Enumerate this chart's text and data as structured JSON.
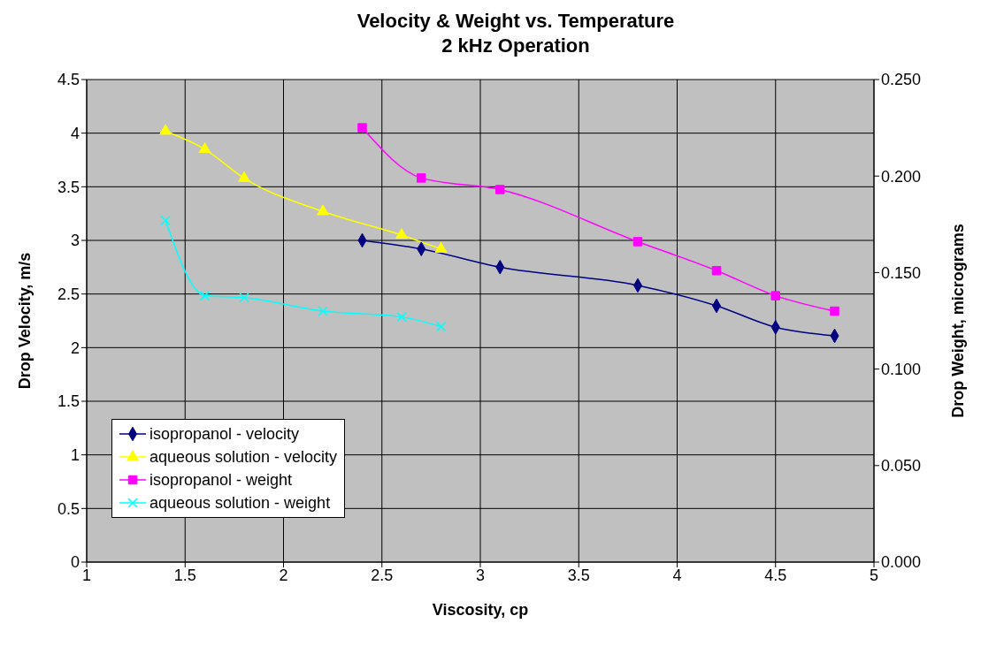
{
  "chart_data": {
    "type": "line",
    "title": "Velocity & Weight vs. Temperature",
    "subtitle": "2 kHz Operation",
    "xlabel": "Viscosity, cp",
    "ylabel": "Drop Velocity, m/s",
    "y2label": "Drop Weight, micrograms",
    "xlim": [
      1,
      5
    ],
    "xticks": [
      1,
      1.5,
      2,
      2.5,
      3,
      3.5,
      4,
      4.5,
      5
    ],
    "ylim": [
      0,
      4.5
    ],
    "yticks": [
      0,
      0.5,
      1,
      1.5,
      2,
      2.5,
      3,
      3.5,
      4,
      4.5
    ],
    "y2lim": [
      0,
      0.25
    ],
    "y2ticks": [
      {
        "value": 0,
        "label": "0.000"
      },
      {
        "value": 0.05,
        "label": "0.050"
      },
      {
        "value": 0.1,
        "label": "0.100"
      },
      {
        "value": 0.15,
        "label": "0.150"
      },
      {
        "value": 0.2,
        "label": "0.200"
      },
      {
        "value": 0.25,
        "label": "0.250"
      }
    ],
    "grid": true,
    "legend": "bottom left",
    "series": [
      {
        "name": "isopropanol - velocity",
        "color": "#000080",
        "marker": "diamond",
        "x": [
          2.4,
          2.7,
          3.1,
          3.8,
          4.2,
          4.5,
          4.8
        ],
        "values": [
          3.0,
          2.92,
          2.75,
          2.58,
          2.39,
          2.19,
          2.11
        ]
      },
      {
        "name": "aqueous solution - velocity",
        "color": "#ffff00",
        "marker": "triangle",
        "x": [
          1.4,
          1.6,
          1.8,
          2.2,
          2.6,
          2.8
        ],
        "values": [
          4.02,
          3.85,
          3.58,
          3.27,
          3.05,
          2.92
        ]
      },
      {
        "name": "isopropanol - weight",
        "color": "#ff00ff",
        "marker": "square",
        "axis": "y2",
        "x": [
          2.4,
          2.7,
          3.1,
          3.8,
          4.2,
          4.5,
          4.8
        ],
        "values": [
          0.225,
          0.199,
          0.193,
          0.166,
          0.151,
          0.138,
          0.13
        ]
      },
      {
        "name": "aqueous solution - weight",
        "color": "#00ffff",
        "marker": "cross",
        "axis": "y2",
        "x": [
          1.4,
          1.6,
          1.8,
          2.2,
          2.6,
          2.8
        ],
        "values": [
          0.177,
          0.138,
          0.137,
          0.13,
          0.127,
          0.122
        ]
      }
    ]
  }
}
